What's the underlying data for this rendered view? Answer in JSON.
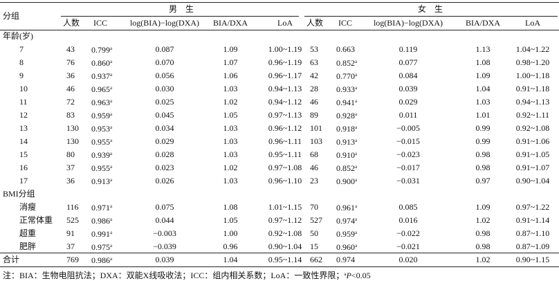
{
  "header": {
    "group": "分组",
    "male": "男　生",
    "female": "女　生",
    "columns": [
      "人数",
      "ICC",
      "log(BIA)−log(DXA)",
      "BIA/DXA",
      "LoA"
    ]
  },
  "table": {
    "rows": [
      {
        "label": "年龄(岁)"
      },
      {
        "label": "7",
        "male": [
          "43",
          {
            "v": "0.799",
            "sup": "a"
          },
          "0.087",
          "1.09",
          "1.00~1.19"
        ],
        "female": [
          "53",
          {
            "v": "0.663"
          },
          "0.119",
          "1.13",
          "1.04~1.22"
        ]
      },
      {
        "label": "8",
        "male": [
          "76",
          {
            "v": "0.860",
            "sup": "a"
          },
          "0.070",
          "1.07",
          "0.96~1.19"
        ],
        "female": [
          "63",
          {
            "v": "0.852",
            "sup": "a"
          },
          "0.077",
          "1.08",
          "0.98~1.20"
        ]
      },
      {
        "label": "9",
        "male": [
          "36",
          {
            "v": "0.937",
            "sup": "a"
          },
          "0.056",
          "1.06",
          "0.96~1.17"
        ],
        "female": [
          "42",
          {
            "v": "0.770",
            "sup": "a"
          },
          "0.084",
          "1.09",
          "1.00~1.18"
        ]
      },
      {
        "label": "10",
        "male": [
          "46",
          {
            "v": "0.965",
            "sup": "a"
          },
          "0.030",
          "1.03",
          "0.94~1.13"
        ],
        "female": [
          "28",
          {
            "v": "0.933",
            "sup": "a"
          },
          "0.039",
          "1.04",
          "0.91~1.18"
        ]
      },
      {
        "label": "11",
        "male": [
          "72",
          {
            "v": "0.963",
            "sup": "a"
          },
          "0.025",
          "1.02",
          "0.94~1.12"
        ],
        "female": [
          "46",
          {
            "v": "0.941",
            "sup": "a"
          },
          "0.029",
          "1.03",
          "0.94~1.13"
        ]
      },
      {
        "label": "12",
        "male": [
          "83",
          {
            "v": "0.959",
            "sup": "a"
          },
          "0.045",
          "1.05",
          "0.97~1.13"
        ],
        "female": [
          "89",
          {
            "v": "0.928",
            "sup": "a"
          },
          "0.011",
          "1.01",
          "0.92~1.11"
        ]
      },
      {
        "label": "13",
        "male": [
          "130",
          {
            "v": "0.953",
            "sup": "a"
          },
          "0.034",
          "1.03",
          "0.96~1.12"
        ],
        "female": [
          "101",
          {
            "v": "0.918",
            "sup": "a"
          },
          "−0.005",
          "0.99",
          "0.92~1.08"
        ]
      },
      {
        "label": "14",
        "male": [
          "130",
          {
            "v": "0.955",
            "sup": "a"
          },
          "0.029",
          "1.03",
          "0.96~1.11"
        ],
        "female": [
          "103",
          {
            "v": "0.913",
            "sup": "a"
          },
          "−0.015",
          "0.99",
          "0.91~1.06"
        ]
      },
      {
        "label": "15",
        "male": [
          "80",
          {
            "v": "0.939",
            "sup": "a"
          },
          "0.028",
          "1.03",
          "0.95~1.11"
        ],
        "female": [
          "68",
          {
            "v": "0.910",
            "sup": "a"
          },
          "−0.023",
          "0.98",
          "0.91~1.05"
        ]
      },
      {
        "label": "16",
        "male": [
          "37",
          {
            "v": "0.955",
            "sup": "a"
          },
          "0.023",
          "1.02",
          "0.97~1.08"
        ],
        "female": [
          "46",
          {
            "v": "0.852",
            "sup": "a"
          },
          "−0.017",
          "0.98",
          "0.91~1.07"
        ]
      },
      {
        "label": "17",
        "male": [
          "36",
          {
            "v": "0.913",
            "sup": "a"
          },
          "0.026",
          "1.03",
          "0.96~1.10"
        ],
        "female": [
          "23",
          {
            "v": "0.900",
            "sup": "a"
          },
          "−0.031",
          "0.97",
          "0.90~1.04"
        ]
      },
      {
        "label": "BMI分组"
      },
      {
        "label": "消瘦",
        "male": [
          "116",
          {
            "v": "0.971",
            "sup": "a"
          },
          "0.075",
          "1.08",
          "1.01~1.15"
        ],
        "female": [
          "70",
          {
            "v": "0.961",
            "sup": "a"
          },
          "0.085",
          "1.09",
          "0.97~1.22"
        ]
      },
      {
        "label": "正常体重",
        "male": [
          "525",
          {
            "v": "0.986",
            "sup": "a"
          },
          "0.044",
          "1.05",
          "0.97~1.12"
        ],
        "female": [
          "527",
          {
            "v": "0.974",
            "sup": "a"
          },
          "0.016",
          "1.02",
          "0.91~1.14"
        ]
      },
      {
        "label": "超重",
        "male": [
          "91",
          {
            "v": "0.991",
            "sup": "a"
          },
          "−0.003",
          "1.00",
          "0.92~1.08"
        ],
        "female": [
          "50",
          {
            "v": "0.959",
            "sup": "a"
          },
          "−0.022",
          "0.98",
          "0.87~1.10"
        ]
      },
      {
        "label": "肥胖",
        "male": [
          "37",
          {
            "v": "0.975",
            "sup": "a"
          },
          "−0.039",
          "0.96",
          "0.90~1.04"
        ],
        "female": [
          "15",
          {
            "v": "0.960",
            "sup": "a"
          },
          "−0.021",
          "0.98",
          "0.87~1.09"
        ]
      },
      {
        "label": "合计",
        "male": [
          "769",
          {
            "v": "0.986",
            "sup": "a"
          },
          "0.039",
          "1.04",
          "0.95~1.14"
        ],
        "female": [
          "662",
          {
            "v": "0.974"
          },
          "0.020",
          "1.02",
          "0.90~1.15"
        ]
      }
    ]
  },
  "note": {
    "text": "注：BIA：生物电阻抗法；DXA：双能X线吸收法；ICC：组内相关系数；LoA：一致性界限；",
    "sup": "a",
    "italic": "P",
    "tail": "<0.05"
  }
}
